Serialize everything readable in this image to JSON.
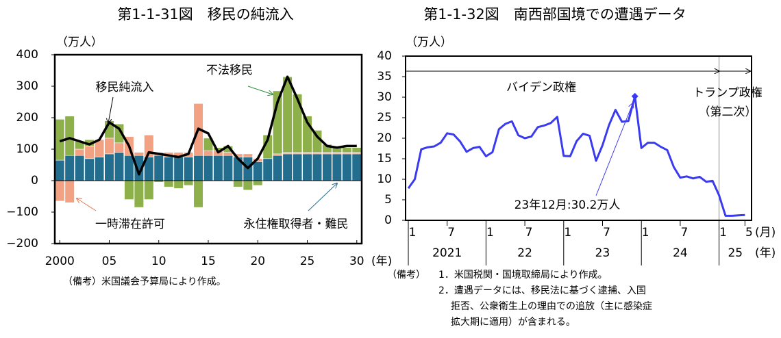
{
  "chart_data": [
    {
      "type": "bar",
      "title": "第1-1-31図　移民の純流入",
      "y_unit": "（万人）",
      "x_unit": "(年)",
      "x": [
        2000,
        2001,
        2002,
        2003,
        2004,
        2005,
        2006,
        2007,
        2008,
        2009,
        2010,
        2011,
        2012,
        2013,
        2014,
        2015,
        2016,
        2017,
        2018,
        2019,
        2020,
        2021,
        2022,
        2023,
        2024,
        2025,
        2026,
        2027,
        2028,
        2029,
        2030
      ],
      "series": [
        {
          "name": "永住権取得者・難民",
          "color": "#236e8e",
          "values": [
            65,
            80,
            80,
            70,
            75,
            85,
            90,
            80,
            80,
            75,
            80,
            75,
            75,
            75,
            80,
            80,
            80,
            80,
            75,
            75,
            60,
            70,
            80,
            85,
            85,
            85,
            85,
            85,
            85,
            85,
            85
          ]
        },
        {
          "name": "一時滞在許可",
          "color": "#f2a283",
          "values": [
            -65,
            -70,
            20,
            40,
            55,
            50,
            30,
            60,
            10,
            70,
            10,
            15,
            15,
            15,
            165,
            15,
            15,
            10,
            10,
            10,
            10,
            0,
            5,
            5,
            5,
            5,
            5,
            5,
            5,
            5,
            5
          ]
        },
        {
          "name": "不法移民",
          "color": "#8db04a",
          "values": [
            130,
            125,
            25,
            20,
            0,
            55,
            60,
            -60,
            -85,
            -60,
            -5,
            -20,
            -25,
            -15,
            -85,
            40,
            10,
            20,
            -20,
            -30,
            -15,
            75,
            200,
            240,
            185,
            115,
            70,
            25,
            15,
            15,
            15
          ]
        }
      ],
      "line": {
        "name": "移民純流入",
        "color": "#000000",
        "values": [
          125,
          135,
          125,
          115,
          130,
          185,
          165,
          110,
          20,
          90,
          85,
          80,
          75,
          85,
          165,
          150,
          90,
          110,
          70,
          40,
          70,
          130,
          250,
          330,
          260,
          185,
          140,
          110,
          105,
          110,
          110
        ]
      },
      "xlim": [
        2000,
        2030
      ],
      "xticks": [
        2000,
        {
          "value": 2005,
          "label": "05"
        },
        10,
        15,
        20,
        25,
        30
      ],
      "ylim": [
        -200,
        400
      ],
      "yticks": [
        {
          "value": -200,
          "label": "−200"
        },
        {
          "value": -100,
          "label": "−100"
        },
        0,
        100,
        200,
        300,
        400
      ],
      "notes": [
        "（備考）米国議会予算局により作成。"
      ]
    },
    {
      "type": "line",
      "title": "第1-1-32図　南西部国境での遭遇データ",
      "y_unit": "（万人）",
      "x": [
        "2021-01",
        "2021-02",
        "2021-03",
        "2021-04",
        "2021-05",
        "2021-06",
        "2021-07",
        "2021-08",
        "2021-09",
        "2021-10",
        "2021-11",
        "2021-12",
        "2022-01",
        "2022-02",
        "2022-03",
        "2022-04",
        "2022-05",
        "2022-06",
        "2022-07",
        "2022-08",
        "2022-09",
        "2022-10",
        "2022-11",
        "2022-12",
        "2023-01",
        "2023-02",
        "2023-03",
        "2023-04",
        "2023-05",
        "2023-06",
        "2023-07",
        "2023-08",
        "2023-09",
        "2023-10",
        "2023-11",
        "2023-12",
        "2024-01",
        "2024-02",
        "2024-03",
        "2024-04",
        "2024-05",
        "2024-06",
        "2024-07",
        "2024-08",
        "2024-09",
        "2024-10",
        "2024-11",
        "2024-12",
        "2025-01",
        "2025-02",
        "2025-03",
        "2025-04",
        "2025-05"
      ],
      "values": [
        7.8,
        10,
        17.3,
        17.8,
        18,
        18.9,
        21.2,
        20.9,
        19.2,
        16.7,
        17.6,
        17.9,
        15.6,
        16.6,
        22.2,
        23.5,
        24.1,
        20.7,
        20,
        20.4,
        22.7,
        23.1,
        23.7,
        25.2,
        15.7,
        15.6,
        19.3,
        21.1,
        20.6,
        14.5,
        18.3,
        23.2,
        26.9,
        24,
        24.2,
        30.2,
        17.6,
        18.9,
        18.9,
        17.9,
        17.1,
        13,
        10.4,
        10.7,
        10.2,
        10.6,
        9.4,
        9.6,
        6.1,
        1.1,
        1.1,
        1.2,
        1.3
      ],
      "color": "#3a3af0",
      "ylim": [
        0,
        40
      ],
      "yticks": [
        0,
        5,
        10,
        15,
        20,
        25,
        30,
        35,
        40
      ],
      "xticks": [
        {
          "value": "2021-01",
          "label": "1"
        },
        {
          "value": "2021-07",
          "label": "7"
        },
        {
          "value": "2022-01",
          "label": "1"
        },
        {
          "value": "2022-07",
          "label": "7"
        },
        {
          "value": "2023-01",
          "label": "1"
        },
        {
          "value": "2023-07",
          "label": "7"
        },
        {
          "value": "2024-01",
          "label": "1"
        },
        {
          "value": "2024-07",
          "label": "7"
        },
        {
          "value": "2025-01",
          "label": "1"
        },
        {
          "value": "2025-05",
          "label": "5"
        }
      ],
      "years": [
        {
          "value": "2021",
          "label": "2021"
        },
        {
          "value": "2022",
          "label": "22"
        },
        {
          "value": "2023",
          "label": "23"
        },
        {
          "value": "2024",
          "label": "24"
        },
        {
          "value": "2025",
          "label": "25"
        }
      ],
      "month_unit": "(月)",
      "year_unit": "(年)",
      "annotations": [
        "バイデン政権",
        "トランプ政権",
        "（第二次）",
        "23年12月:30.2万人"
      ],
      "notes": [
        "（備考）",
        "1．米国税関・国境取締局により作成。",
        "2．遭遇データには、移民法に基づく逮捕、入国",
        "拒否、公衆衛生上の理由での追放（主に感染症",
        "拡大期に適用）が含まれる。"
      ]
    }
  ]
}
